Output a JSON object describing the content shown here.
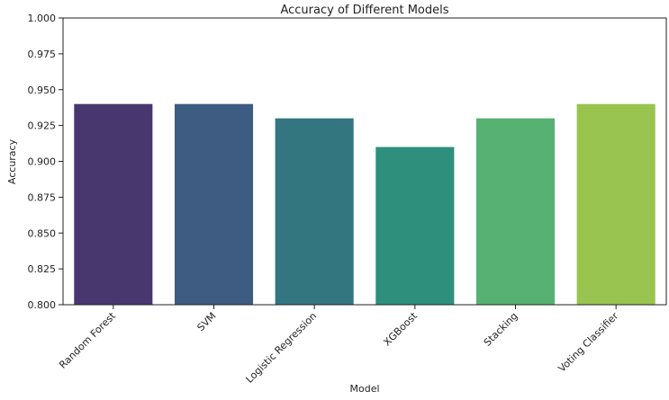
{
  "chart_data": {
    "type": "bar",
    "title": "Accuracy of Different Models",
    "xlabel": "Model",
    "ylabel": "Accuracy",
    "categories": [
      "Random Forest",
      "SVM",
      "Logistic Regression",
      "XGBoost",
      "Stacking",
      "Voting Classifier"
    ],
    "values": [
      0.94,
      0.94,
      0.93,
      0.91,
      0.93,
      0.94
    ],
    "colors": [
      "#48376F",
      "#3E5C82",
      "#33767F",
      "#2E8F7C",
      "#57B173",
      "#98C44F"
    ],
    "ylim": [
      0.8,
      1.0
    ],
    "yticks": [
      "0.800",
      "0.825",
      "0.850",
      "0.875",
      "0.900",
      "0.925",
      "0.950",
      "0.975",
      "1.000"
    ],
    "grid": false,
    "legend": false
  }
}
